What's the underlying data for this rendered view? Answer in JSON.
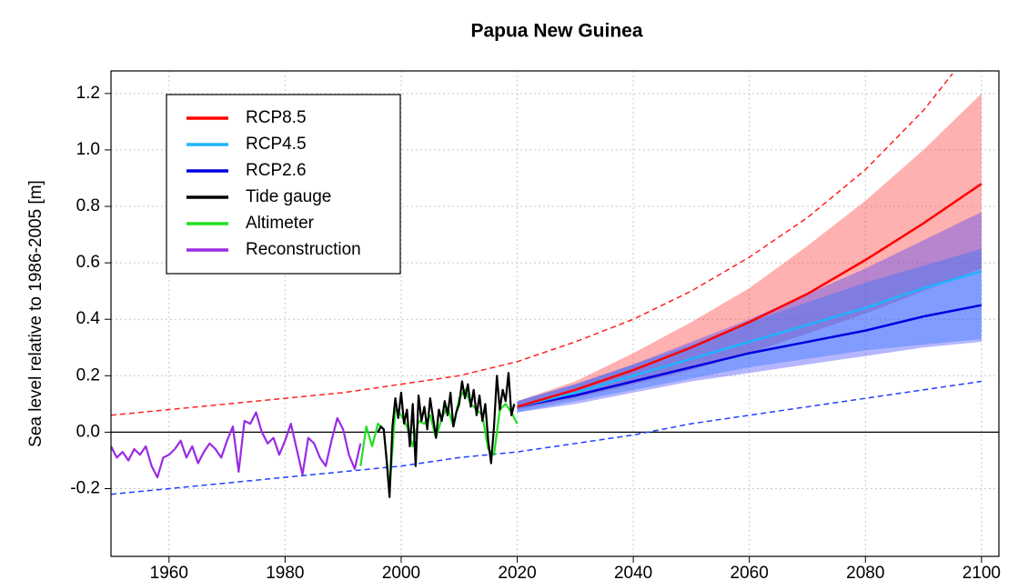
{
  "chart_data": {
    "type": "line",
    "title": "Papua New Guinea",
    "y_label": "Sea level relative to 1986-2005 [m]",
    "xlim": [
      1950,
      2103
    ],
    "ylim": [
      -0.44,
      1.28
    ],
    "xticks": [
      1960,
      1980,
      2000,
      2020,
      2040,
      2060,
      2080,
      2100
    ],
    "yticks": [
      -0.2,
      {
        "value": 0,
        "label": "0.0"
      },
      0.2,
      0.4,
      0.6,
      0.8,
      {
        "value": 1,
        "label": "1.0"
      },
      1.2
    ],
    "grid": true,
    "legend": "top-left",
    "series": [
      {
        "name": "RCP8.5",
        "color": "#ff0000",
        "band_color": "#ff3030",
        "x": [
          2020,
          2030,
          2040,
          2050,
          2060,
          2070,
          2080,
          2090,
          2100
        ],
        "values": [
          0.09,
          0.15,
          0.22,
          0.3,
          0.39,
          0.49,
          0.61,
          0.74,
          0.88
        ],
        "low": [
          0.08,
          0.12,
          0.17,
          0.22,
          0.28,
          0.35,
          0.42,
          0.5,
          0.58
        ],
        "high": [
          0.11,
          0.18,
          0.28,
          0.39,
          0.51,
          0.66,
          0.82,
          1.0,
          1.2
        ]
      },
      {
        "name": "RCP4.5",
        "color": "#1eb4ff",
        "band_color": "#1e90ff",
        "x": [
          2020,
          2030,
          2040,
          2050,
          2060,
          2070,
          2080,
          2090,
          2100
        ],
        "values": [
          0.09,
          0.14,
          0.2,
          0.26,
          0.32,
          0.38,
          0.44,
          0.51,
          0.57
        ],
        "low": [
          0.07,
          0.11,
          0.15,
          0.19,
          0.23,
          0.26,
          0.29,
          0.31,
          0.33
        ],
        "high": [
          0.11,
          0.17,
          0.24,
          0.31,
          0.39,
          0.46,
          0.53,
          0.59,
          0.65
        ]
      },
      {
        "name": "RCP2.6",
        "color": "#0000e0",
        "band_color": "#4040ff",
        "x": [
          2020,
          2030,
          2040,
          2050,
          2060,
          2070,
          2080,
          2090,
          2100
        ],
        "values": [
          0.09,
          0.13,
          0.18,
          0.23,
          0.28,
          0.32,
          0.36,
          0.41,
          0.45
        ],
        "low": [
          0.07,
          0.1,
          0.14,
          0.18,
          0.21,
          0.24,
          0.27,
          0.3,
          0.32
        ],
        "high": [
          0.11,
          0.17,
          0.24,
          0.32,
          0.4,
          0.49,
          0.58,
          0.68,
          0.78
        ]
      },
      {
        "name": "Tide gauge",
        "color": "#000000",
        "x": [
          1996,
          1996.5,
          1997,
          1997.5,
          1998,
          1998.5,
          1999,
          1999.5,
          2000,
          2000.5,
          2001,
          2001.5,
          2002,
          2002.5,
          2003,
          2003.5,
          2004,
          2004.5,
          2005,
          2005.5,
          2006,
          2006.5,
          2007,
          2007.5,
          2008,
          2008.5,
          2009,
          2009.5,
          2010,
          2010.5,
          2011,
          2011.5,
          2012,
          2012.5,
          2013,
          2013.5,
          2014,
          2014.5,
          2015,
          2015.5,
          2016,
          2016.5,
          2017,
          2017.5,
          2018,
          2018.5,
          2019,
          2019.5
        ],
        "values": [
          0.0,
          0.02,
          0.01,
          -0.1,
          -0.23,
          0.02,
          0.12,
          0.05,
          0.14,
          0.03,
          0.08,
          -0.05,
          0.1,
          -0.12,
          0.13,
          0.04,
          0.09,
          0.01,
          0.12,
          0.05,
          -0.02,
          0.08,
          0.04,
          0.11,
          0.06,
          0.14,
          0.02,
          0.07,
          0.1,
          0.18,
          0.12,
          0.17,
          0.09,
          0.15,
          0.06,
          0.13,
          0.04,
          0.1,
          -0.03,
          -0.11,
          0.02,
          0.2,
          0.08,
          0.15,
          0.11,
          0.21,
          0.06,
          0.1
        ]
      },
      {
        "name": "Altimeter",
        "color": "#22e022",
        "x": [
          1993,
          1994,
          1995,
          1996,
          1997,
          1998,
          1999,
          2000,
          2001,
          2002,
          2003,
          2004,
          2005,
          2006,
          2007,
          2008,
          2009,
          2010,
          2011,
          2012,
          2013,
          2014,
          2015,
          2016,
          2017,
          2018,
          2019,
          2020
        ],
        "values": [
          -0.12,
          0.02,
          -0.05,
          0.03,
          0.01,
          -0.2,
          0.08,
          0.06,
          0.02,
          -0.05,
          0.04,
          0.03,
          0.06,
          -0.02,
          0.05,
          0.09,
          0.02,
          0.12,
          0.15,
          0.1,
          0.08,
          0.06,
          -0.06,
          -0.08,
          0.08,
          0.1,
          0.07,
          0.03
        ]
      },
      {
        "name": "Reconstruction",
        "color": "#9a2be2",
        "x": [
          1950,
          1951,
          1952,
          1953,
          1954,
          1955,
          1956,
          1957,
          1958,
          1959,
          1960,
          1961,
          1962,
          1963,
          1964,
          1965,
          1966,
          1967,
          1968,
          1969,
          1970,
          1971,
          1972,
          1973,
          1974,
          1975,
          1976,
          1977,
          1978,
          1979,
          1980,
          1981,
          1982,
          1983,
          1984,
          1985,
          1986,
          1987,
          1988,
          1989,
          1990,
          1991,
          1992,
          1993
        ],
        "values": [
          -0.05,
          -0.09,
          -0.07,
          -0.1,
          -0.06,
          -0.08,
          -0.05,
          -0.12,
          -0.16,
          -0.09,
          -0.08,
          -0.06,
          -0.03,
          -0.09,
          -0.05,
          -0.11,
          -0.07,
          -0.04,
          -0.06,
          -0.09,
          -0.03,
          0.02,
          -0.14,
          0.04,
          0.03,
          0.07,
          0.0,
          -0.04,
          -0.02,
          -0.08,
          -0.03,
          0.03,
          -0.06,
          -0.15,
          -0.02,
          -0.04,
          -0.09,
          -0.12,
          -0.03,
          0.05,
          0.01,
          -0.08,
          -0.13,
          -0.04
        ]
      },
      {
        "color": "#ff2020",
        "dashed": true,
        "x": [
          1950,
          1960,
          1970,
          1980,
          1990,
          2000,
          2010,
          2020,
          2030,
          2040,
          2050,
          2060,
          2070,
          2080,
          2090,
          2095
        ],
        "values": [
          0.06,
          0.08,
          0.1,
          0.12,
          0.14,
          0.17,
          0.2,
          0.25,
          0.32,
          0.4,
          0.5,
          0.62,
          0.76,
          0.93,
          1.14,
          1.27
        ]
      },
      {
        "color": "#2040ff",
        "dashed": true,
        "x": [
          1950,
          1960,
          1970,
          1980,
          1990,
          2000,
          2010,
          2020,
          2030,
          2040,
          2050,
          2060,
          2070,
          2080,
          2090,
          2100
        ],
        "values": [
          -0.22,
          -0.2,
          -0.18,
          -0.16,
          -0.14,
          -0.12,
          -0.09,
          -0.07,
          -0.04,
          -0.01,
          0.03,
          0.06,
          0.09,
          0.12,
          0.15,
          0.18
        ]
      }
    ]
  }
}
